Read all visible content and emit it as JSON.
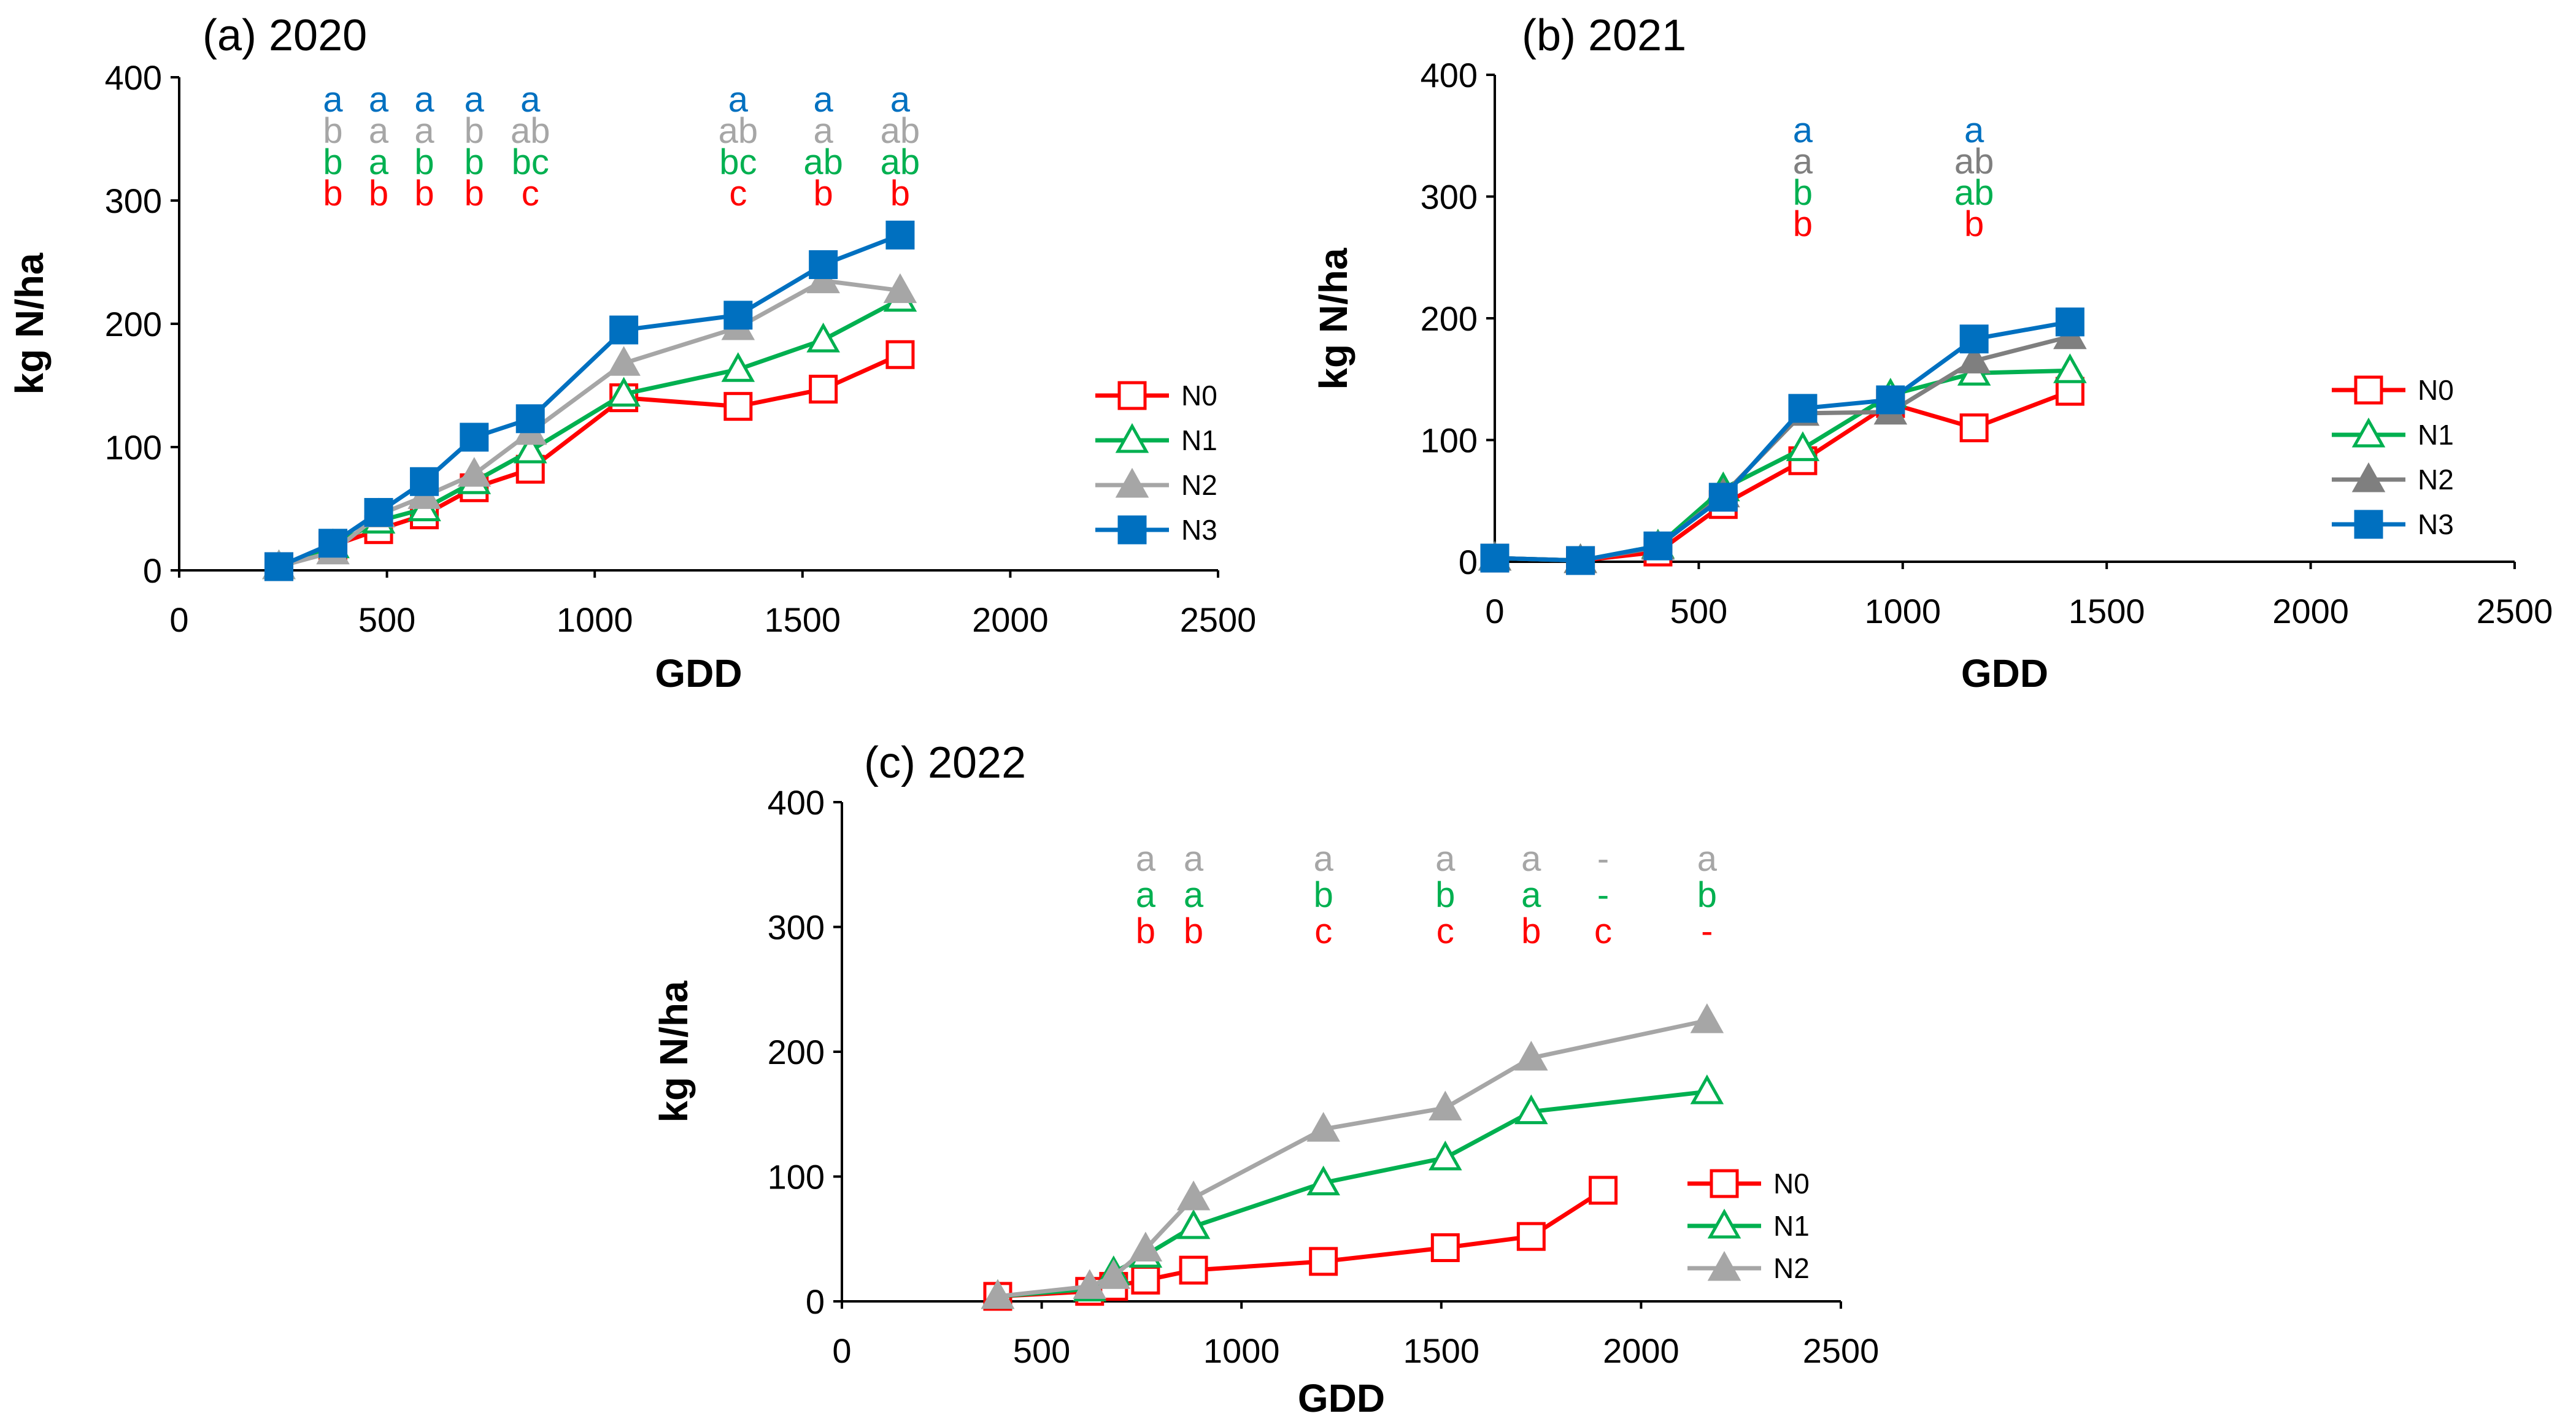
{
  "chart_data": [
    {
      "type": "line",
      "title": "(a) 2020",
      "xlabel": "GDD",
      "ylabel": "kg N/ha",
      "xlim": [
        0,
        2500
      ],
      "ylim": [
        0,
        400
      ],
      "xticks": [
        "0",
        "500",
        "1000",
        "1500",
        "2000",
        "2500"
      ],
      "yticks": [
        "0",
        "100",
        "200",
        "300",
        "400"
      ],
      "series": [
        {
          "name": "N0",
          "color": "#ff0000",
          "marker": "square-open",
          "x": [
            240,
            370,
            480,
            590,
            710,
            845,
            1070,
            1345,
            1550,
            1735
          ],
          "y": [
            3,
            20,
            33,
            45,
            67,
            82,
            140,
            133,
            147,
            175
          ]
        },
        {
          "name": "N1",
          "color": "#00b050",
          "marker": "triangle-open",
          "x": [
            240,
            370,
            480,
            590,
            710,
            845,
            1070,
            1345,
            1550,
            1735
          ],
          "y": [
            3,
            20,
            40,
            50,
            72,
            97,
            143,
            163,
            187,
            220
          ]
        },
        {
          "name": "N2",
          "color": "#a6a6a6",
          "marker": "triangle",
          "x": [
            240,
            370,
            480,
            590,
            710,
            845,
            1070,
            1345,
            1550,
            1735
          ],
          "y": [
            3,
            15,
            45,
            60,
            78,
            112,
            168,
            197,
            235,
            227
          ]
        },
        {
          "name": "N3",
          "color": "#0070c0",
          "marker": "square",
          "x": [
            240,
            370,
            480,
            590,
            710,
            845,
            1070,
            1345,
            1550,
            1735
          ],
          "y": [
            3,
            22,
            47,
            72,
            108,
            123,
            195,
            207,
            248,
            272
          ]
        }
      ],
      "annotations": {
        "x": [
          240,
          370,
          480,
          590,
          710,
          845,
          1345,
          1550,
          1735
        ],
        "rows": [
          {
            "series": "N3",
            "labels": [
              "a",
              "a",
              "a",
              "a",
              "a",
              "a",
              "a",
              "a",
              "a"
            ],
            "skip_first": true
          },
          {
            "series": "N2",
            "labels": [
              "a",
              "b",
              "a",
              "a",
              "b",
              "ab",
              "ab",
              "a",
              "ab"
            ],
            "skip_first": true
          },
          {
            "series": "N1",
            "labels": [
              "ab",
              "b",
              "a",
              "b",
              "b",
              "bc",
              "bc",
              "ab",
              "ab"
            ],
            "skip_first": true
          },
          {
            "series": "N0",
            "labels": [
              "b",
              "b",
              "b",
              "b",
              "b",
              "c",
              "c",
              "b",
              "b"
            ],
            "skip_first": true
          }
        ]
      },
      "legend": "right"
    },
    {
      "type": "line",
      "title": "(b) 2021",
      "xlabel": "GDD",
      "ylabel": "kg N/ha",
      "xlim": [
        0,
        2500
      ],
      "ylim": [
        0,
        400
      ],
      "xticks": [
        "0",
        "500",
        "1000",
        "1500",
        "2000",
        "2500"
      ],
      "yticks": [
        "0",
        "100",
        "200",
        "300",
        "400"
      ],
      "series": [
        {
          "name": "N0",
          "color": "#ff0000",
          "marker": "square-open",
          "x": [
            0,
            210,
            400,
            560,
            755,
            970,
            1175,
            1410
          ],
          "y": [
            3,
            1,
            8,
            47,
            83,
            130,
            110,
            140
          ]
        },
        {
          "name": "N1",
          "color": "#00b050",
          "marker": "triangle-open",
          "x": [
            0,
            210,
            400,
            560,
            755,
            970,
            1175,
            1410
          ],
          "y": [
            3,
            1,
            13,
            60,
            93,
            137,
            155,
            157
          ]
        },
        {
          "name": "N2",
          "color": "#7f7f7f",
          "marker": "triangle",
          "x": [
            0,
            210,
            400,
            560,
            755,
            970,
            1175,
            1410
          ],
          "y": [
            3,
            1,
            12,
            55,
            122,
            123,
            165,
            185
          ]
        },
        {
          "name": "N3",
          "color": "#0070c0",
          "marker": "square",
          "x": [
            0,
            210,
            400,
            560,
            755,
            970,
            1175,
            1410
          ],
          "y": [
            3,
            1,
            13,
            53,
            126,
            133,
            183,
            197
          ]
        }
      ],
      "annotations": {
        "x": [
          755,
          1175
        ],
        "rows": [
          {
            "series": "N3",
            "labels": [
              "a",
              "a"
            ]
          },
          {
            "series": "N2",
            "labels": [
              "a",
              "ab"
            ]
          },
          {
            "series": "N1",
            "labels": [
              "b",
              "ab"
            ]
          },
          {
            "series": "N0",
            "labels": [
              "b",
              "b"
            ]
          }
        ]
      },
      "legend": "right"
    },
    {
      "type": "line",
      "title": "(c) 2022",
      "xlabel": "GDD",
      "ylabel": "kg N/ha",
      "xlim": [
        0,
        2500
      ],
      "ylim": [
        0,
        400
      ],
      "xticks": [
        "0",
        "500",
        "1000",
        "1500",
        "2000",
        "2500"
      ],
      "yticks": [
        "0",
        "100",
        "200",
        "300",
        "400"
      ],
      "series": [
        {
          "name": "N0",
          "color": "#ff0000",
          "marker": "square-open",
          "x": [
            390,
            620,
            680,
            760,
            880,
            1205,
            1510,
            1725,
            1905
          ],
          "y": [
            4,
            8,
            12,
            17,
            25,
            32,
            43,
            52,
            89
          ]
        },
        {
          "name": "N1",
          "color": "#00b050",
          "marker": "triangle-open",
          "x": [
            390,
            620,
            680,
            760,
            880,
            1205,
            1510,
            1725,
            2165
          ],
          "y": [
            4,
            10,
            23,
            37,
            60,
            95,
            115,
            152,
            168
          ]
        },
        {
          "name": "N2",
          "color": "#a6a6a6",
          "marker": "triangle",
          "x": [
            390,
            620,
            680,
            760,
            880,
            1205,
            1510,
            1725,
            2165
          ],
          "y": [
            4,
            12,
            20,
            42,
            83,
            138,
            155,
            195,
            225
          ]
        }
      ],
      "annotations": {
        "x": [
          760,
          880,
          1205,
          1510,
          1725,
          1905,
          2165
        ],
        "rows": [
          {
            "series": "N2",
            "labels": [
              "a",
              "a",
              "a",
              "a",
              "a",
              "-",
              "a"
            ]
          },
          {
            "series": "N1",
            "labels": [
              "a",
              "a",
              "b",
              "b",
              "a",
              "-",
              "b"
            ]
          },
          {
            "series": "N0",
            "labels": [
              "b",
              "b",
              "c",
              "c",
              "b",
              "c",
              "-"
            ]
          }
        ]
      },
      "legend": "right"
    }
  ]
}
